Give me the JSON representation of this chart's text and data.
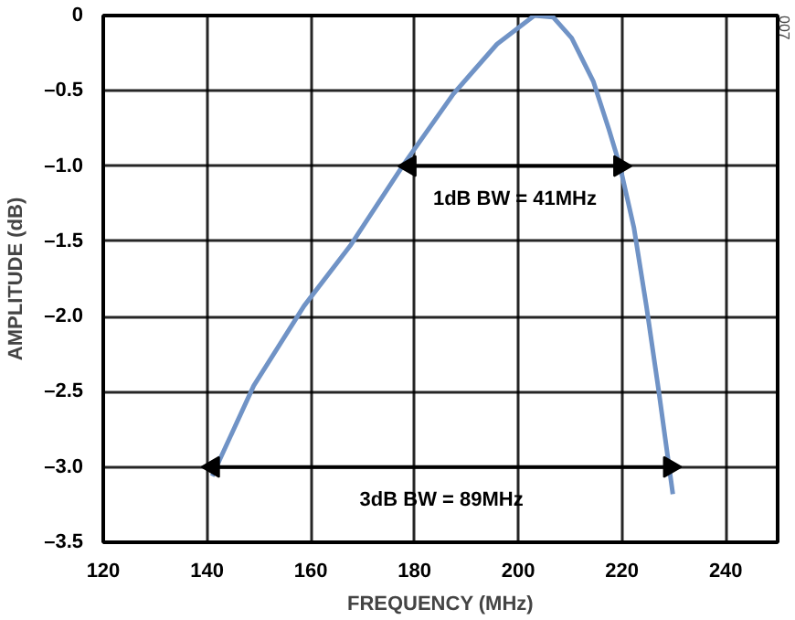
{
  "chart_data": {
    "type": "line",
    "xlabel": "FREQUENCY (MHz)",
    "ylabel": "AMPLITUDE (dB)",
    "x": [
      141.0,
      149.0,
      158.7,
      167.6,
      177.9,
      187.5,
      195.9,
      203.1,
      206.7,
      210.3,
      214.5,
      217.5,
      219.6,
      222.3,
      224.7,
      227.1,
      229.8
    ],
    "series": [
      {
        "color": "#7093c6",
        "values": [
          -3.06,
          -2.46,
          -1.93,
          -1.53,
          -0.99,
          -0.52,
          -0.19,
          0.0,
          -0.01,
          -0.15,
          -0.44,
          -0.76,
          -1.0,
          -1.41,
          -1.93,
          -2.5,
          -3.18
        ]
      },
      {
        "color": "#000000",
        "marker": "triangle",
        "x": [
          179.1,
          219.6
        ],
        "values": [
          -1.0,
          -1.0
        ]
      },
      {
        "color": "#000000",
        "marker": "triangle",
        "x": [
          141.2,
          229.2
        ],
        "values": [
          -3.0,
          -3.0
        ]
      }
    ],
    "xlim": [
      120,
      250
    ],
    "xticks": [
      120,
      140,
      160,
      180,
      200,
      220,
      240
    ],
    "ylim": [
      -3.5,
      0
    ],
    "yticks": [
      {
        "value": 0,
        "label": "0"
      },
      {
        "value": -0.5,
        "label": "–0.5"
      },
      {
        "value": -1.0,
        "label": "–1.0"
      },
      {
        "value": -1.5,
        "label": "–1.5"
      },
      {
        "value": -2.0,
        "label": "–2.0"
      },
      {
        "value": -2.5,
        "label": "–2.5"
      },
      {
        "value": -3.0,
        "label": "–3.0"
      },
      {
        "value": -3.5,
        "label": "–3.5"
      }
    ],
    "grid": true,
    "line_style": "solid",
    "marker": "none",
    "annotations": [
      "1dB BW = 41MHz",
      "3dB BW = 89MHz",
      "007"
    ]
  }
}
